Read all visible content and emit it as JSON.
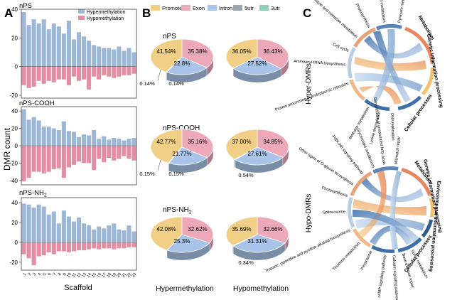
{
  "panels": {
    "A": "A",
    "B": "B",
    "C": "C"
  },
  "chart_data": [
    {
      "type": "bar",
      "panel": "A",
      "x": [
        1,
        2,
        3,
        4,
        5,
        6,
        7,
        8,
        9,
        10,
        11,
        12,
        13,
        14,
        15,
        16,
        17,
        18,
        19,
        20,
        21,
        22,
        23
      ],
      "x_tick_labels": [
        "1",
        "2",
        "3",
        "4",
        "5",
        "6",
        "7",
        "8",
        "9",
        "10",
        "11",
        "12",
        "13",
        "14",
        "15",
        "16",
        "17",
        "18",
        "19",
        "20",
        "21",
        "22",
        "23"
      ],
      "xlabel": "Scaffold",
      "ylabel": "DMR count",
      "legend": {
        "position": "top-right",
        "entries": [
          {
            "name": "Hypermethylation",
            "color": "#9db7d6"
          },
          {
            "name": "Hypomethylation",
            "color": "#e38ea2"
          }
        ]
      },
      "subplots": [
        {
          "title": "nPS",
          "title_sub": "",
          "ylim": [
            -22,
            40
          ],
          "yticks": [
            40,
            20,
            0,
            -20
          ],
          "series": [
            {
              "name": "Hypermethylation",
              "values": [
                38,
                29,
                33,
                30,
                33,
                26,
                30,
                28,
                23,
                32,
                19,
                24,
                21,
                18,
                15,
                14,
                13,
                13,
                12,
                14,
                11,
                13,
                10
              ]
            },
            {
              "name": "Hypomethylation",
              "values": [
                -13,
                -15,
                -14,
                -10,
                -12,
                -10,
                -11,
                -9,
                -9,
                -13,
                -7,
                -10,
                -9,
                -16,
                -7,
                -9,
                -6,
                -7,
                -8,
                -7,
                -6,
                -6,
                -5
              ]
            }
          ]
        },
        {
          "title": "nPS-COOH",
          "title_sub": "",
          "ylim": [
            -45,
            45
          ],
          "yticks": [
            40,
            20,
            0,
            -20,
            -40
          ],
          "series": [
            {
              "name": "Hypermethylation",
              "values": [
                42,
                30,
                33,
                29,
                22,
                22,
                20,
                18,
                28,
                17,
                16,
                10,
                13,
                12,
                18,
                8,
                11,
                7,
                9,
                8,
                6,
                8,
                9
              ]
            },
            {
              "name": "Hypomethylation",
              "values": [
                -41,
                -37,
                -30,
                -30,
                -32,
                -30,
                -27,
                -26,
                -37,
                -25,
                -22,
                -18,
                -20,
                -20,
                -28,
                -15,
                -19,
                -14,
                -17,
                -15,
                -12,
                -15,
                -17
              ]
            }
          ]
        },
        {
          "title": "nPS-NH",
          "title_sub": "2",
          "ylim": [
            -28,
            45
          ],
          "yticks": [
            40,
            20,
            0,
            -20
          ],
          "series": [
            {
              "name": "Hypermethylation",
              "values": [
                39,
                38,
                35,
                38,
                36,
                28,
                31,
                19,
                32,
                26,
                21,
                25,
                19,
                17,
                13,
                16,
                14,
                17,
                19,
                13,
                12,
                17,
                11
              ]
            },
            {
              "name": "Hypomethylation",
              "values": [
                -12,
                -16,
                -23,
                -14,
                -13,
                -10,
                -12,
                -9,
                -9,
                -10,
                -9,
                -8,
                -8,
                -7,
                -6,
                -7,
                -6,
                -6,
                -7,
                -6,
                -6,
                -5,
                -5
              ]
            }
          ]
        }
      ]
    },
    {
      "type": "pie",
      "panel": "B",
      "legend": {
        "position": "top",
        "entries": [
          {
            "name": "Promoter",
            "color": "#f1cf87"
          },
          {
            "name": "Exon",
            "color": "#eea9b8"
          },
          {
            "name": "Intron",
            "color": "#a9c4e8"
          },
          {
            "name": "5utr",
            "color": "#9aa4b2"
          },
          {
            "name": "3utr",
            "color": "#8fd0b5"
          }
        ]
      },
      "column_labels": [
        "Hypermethylation",
        "Hypomethylation"
      ],
      "groups": [
        {
          "title": "nPS",
          "title_sub": "",
          "pies": [
            {
              "values": [
                41.54,
                35.38,
                22.8,
                0.14,
                0.14
              ],
              "labels": [
                "41.54%",
                "35.38%",
                "22.8%",
                "0.14%",
                "0.14%"
              ]
            },
            {
              "values": [
                36.05,
                36.43,
                27.52,
                0,
                0
              ],
              "labels": [
                "36.05%",
                "36.43%",
                "27.52%",
                "",
                ""
              ]
            }
          ]
        },
        {
          "title": "nPS-COOH",
          "title_sub": "",
          "pies": [
            {
              "values": [
                42.77,
                35.16,
                21.77,
                0.15,
                0.15
              ],
              "labels": [
                "42.77%",
                "35.16%",
                "21.77%",
                "0.15%",
                "0.15%"
              ]
            },
            {
              "values": [
                37.0,
                34.85,
                27.61,
                0.54,
                0
              ],
              "labels": [
                "37.00%",
                "34.85%",
                "27.61%",
                "0.54%",
                ""
              ]
            }
          ]
        },
        {
          "title": "nPS-NH",
          "title_sub": "2",
          "pies": [
            {
              "values": [
                42.08,
                32.62,
                25.3,
                0,
                0
              ],
              "labels": [
                "42.08%",
                "32.62%",
                "25.3%",
                "",
                ""
              ]
            },
            {
              "values": [
                35.69,
                32.66,
                31.31,
                0.34,
                0
              ],
              "labels": [
                "35.69%",
                "32.66%",
                "31.31%",
                "0.34%",
                ""
              ]
            }
          ]
        }
      ]
    },
    {
      "type": "chord",
      "panel": "C",
      "charts": [
        {
          "title": "Hyper-DMRs",
          "categories": [
            {
              "name": "Metabolism",
              "color": "#e8875d"
            },
            {
              "name": "Genetic information processing",
              "color": "#f3c26b"
            },
            {
              "name": "Cellular processes",
              "color": "#3f6fa8"
            }
          ],
          "terms": [
            "Pyruvate metabolism",
            "Glycerolipid metabolism",
            "Photosynthesis",
            "Fructose and mannose metabolism",
            "Cell cycle",
            "Aminoacyl-tRNA biosynthesis",
            "Protein processing in endoplasmic reticulum",
            "Methane metabolism",
            "Lysine degradation",
            "DNA replication"
          ]
        },
        {
          "title": "Hypo-DMRs",
          "categories": [
            {
              "name": "Metabolism",
              "color": "#e8875d"
            },
            {
              "name": "Genetic information processing",
              "color": "#f3c26b"
            },
            {
              "name": "Environmental information processing",
              "color": "#2f5d8c"
            },
            {
              "name": "Cellular processes",
              "color": "#3f6fa8"
            }
          ],
          "terms": [
            "Mismatch repair",
            "Biosynthesis of unsaturated fatty acids",
            "Glycerolipid metabolism",
            "PI3K-Akt signaling pathway",
            "Other types of O-glycan biosynthesis",
            "Photosynthesis",
            "Spliceosome",
            "Tropane, piperidine and pyridine alkaloid biosynthesis",
            "Thiamine metabolism",
            "Peroxisome",
            "cAMP signaling pathway",
            "Calcium signaling pathway",
            "Base excision repair",
            "Sulfur metabolism"
          ]
        }
      ]
    }
  ]
}
